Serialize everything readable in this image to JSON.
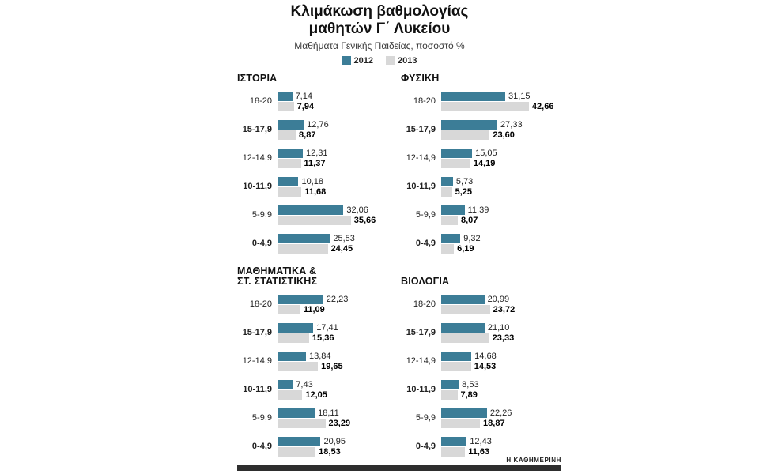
{
  "title": {
    "line1": "Κλιμάκωση βαθμολογίας",
    "line2": "μαθητών Γ΄ Λυκείου"
  },
  "subtitle": "Μαθήματα Γενικής Παιδείας, ποσοστό %",
  "legend": [
    {
      "label": "2012",
      "color": "#3c7d97"
    },
    {
      "label": "2013",
      "color": "#d8d8d8"
    }
  ],
  "colors": {
    "s2012": "#3c7d97",
    "s2013": "#d8d8d8"
  },
  "footer": {
    "brand": "Η ΚΑΘΗΜΕΡΙΝΗ"
  },
  "chart_data": [
    {
      "type": "bar",
      "title": "ΙΣΤΟΡΙΑ",
      "unit": "%",
      "xlim": [
        0,
        45
      ],
      "grid": false,
      "legend_position": "top",
      "categories": [
        "18-20",
        "15-17,9",
        "12-14,9",
        "10-11,9",
        "5-9,9",
        "0-4,9"
      ],
      "series": [
        {
          "name": "2012",
          "color": "#3c7d97",
          "values": [
            7.14,
            12.76,
            12.31,
            10.18,
            32.06,
            25.53
          ]
        },
        {
          "name": "2013",
          "color": "#d8d8d8",
          "values": [
            7.94,
            8.87,
            11.37,
            11.68,
            35.66,
            24.45
          ]
        }
      ]
    },
    {
      "type": "bar",
      "title": "ΦΥΣΙΚΗ",
      "unit": "%",
      "xlim": [
        0,
        45
      ],
      "grid": false,
      "legend_position": "top",
      "categories": [
        "18-20",
        "15-17,9",
        "12-14,9",
        "10-11,9",
        "5-9,9",
        "0-4,9"
      ],
      "series": [
        {
          "name": "2012",
          "color": "#3c7d97",
          "values": [
            31.15,
            27.33,
            15.05,
            5.73,
            11.39,
            9.32
          ]
        },
        {
          "name": "2013",
          "color": "#d8d8d8",
          "values": [
            42.66,
            23.6,
            14.19,
            5.25,
            8.07,
            6.19
          ]
        }
      ]
    },
    {
      "type": "bar",
      "title": "ΜΑΘΗΜΑΤΙΚΑ &\nΣΤ. ΣΤΑΤΙΣΤΙΚΗΣ",
      "unit": "%",
      "xlim": [
        0,
        45
      ],
      "grid": false,
      "legend_position": "top",
      "categories": [
        "18-20",
        "15-17,9",
        "12-14,9",
        "10-11,9",
        "5-9,9",
        "0-4,9"
      ],
      "series": [
        {
          "name": "2012",
          "color": "#3c7d97",
          "values": [
            22.23,
            17.41,
            13.84,
            7.43,
            18.11,
            20.95
          ]
        },
        {
          "name": "2013",
          "color": "#d8d8d8",
          "values": [
            11.09,
            15.36,
            19.65,
            12.05,
            23.29,
            18.53
          ]
        }
      ]
    },
    {
      "type": "bar",
      "title": "ΒΙΟΛΟΓΙΑ",
      "unit": "%",
      "xlim": [
        0,
        45
      ],
      "grid": false,
      "legend_position": "top",
      "categories": [
        "18-20",
        "15-17,9",
        "12-14,9",
        "10-11,9",
        "5-9,9",
        "0-4,9"
      ],
      "series": [
        {
          "name": "2012",
          "color": "#3c7d97",
          "values": [
            20.99,
            21.1,
            14.68,
            8.53,
            22.26,
            12.43
          ]
        },
        {
          "name": "2013",
          "color": "#d8d8d8",
          "values": [
            23.72,
            23.33,
            14.53,
            7.89,
            18.87,
            11.63
          ]
        }
      ]
    }
  ]
}
